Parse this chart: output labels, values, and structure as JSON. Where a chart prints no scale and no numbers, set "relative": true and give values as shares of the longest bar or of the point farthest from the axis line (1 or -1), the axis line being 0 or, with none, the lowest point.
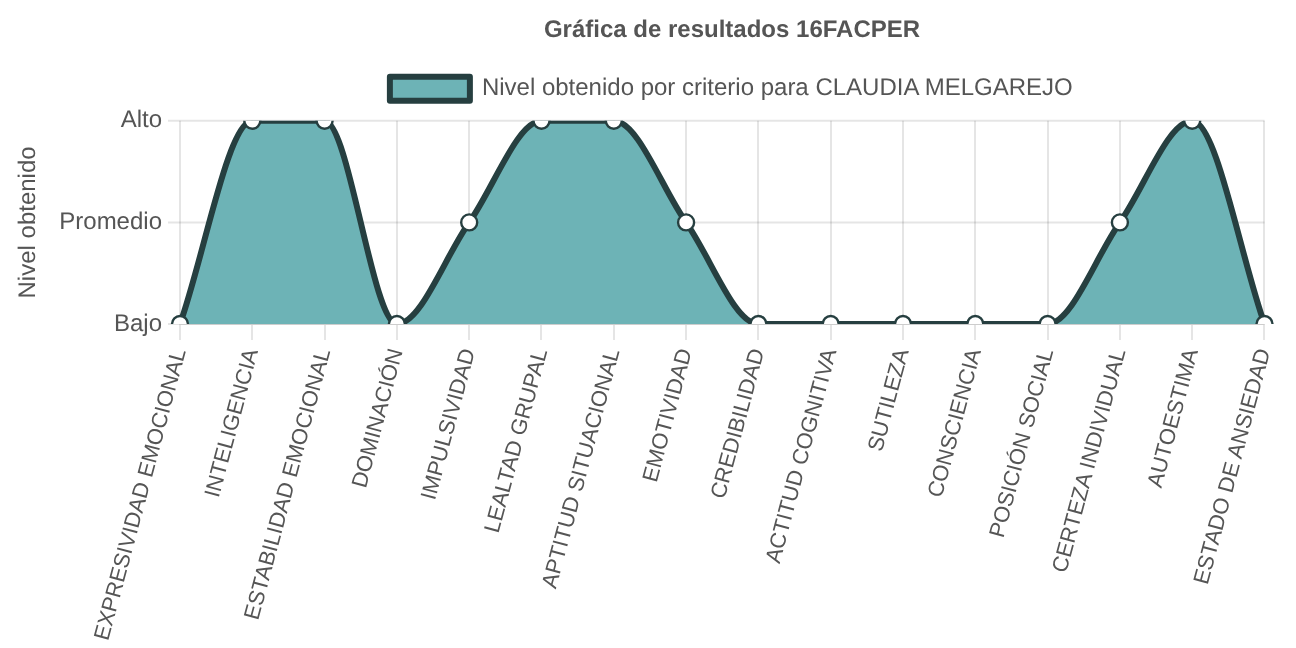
{
  "chart_data": {
    "type": "area",
    "title": "Gráfica de resultados 16FACPER",
    "ylabel": "Nivel obtenido",
    "categories": [
      "EXPRESIVIDAD EMOCIONAL",
      "INTELIGENCIA",
      "ESTABILIDAD EMOCIONAL",
      "DOMINACIÓN",
      "IMPULSIVIDAD",
      "LEALTAD GRUPAL",
      "APTITUD SITUACIONAL",
      "EMOTIVIDAD",
      "CREDIBILIDAD",
      "ACTITUD COGNITIVA",
      "SUTILEZA",
      "CONSCIENCIA",
      "POSICIÓN SOCIAL",
      "CERTEZA INDIVIDUAL",
      "AUTOESTIMA",
      "ESTADO DE ANSIEDAD"
    ],
    "series": [
      {
        "name": "Nivel obtenido por criterio para CLAUDIA MELGAREJO",
        "color": "#6db3b6",
        "values": [
          0,
          1,
          1,
          0,
          0.5,
          1,
          1,
          0.5,
          0,
          0,
          0,
          0,
          0,
          0.5,
          1,
          0
        ]
      }
    ],
    "relative": true,
    "annotations": [
      "Bajo",
      "Promedio",
      "Alto"
    ],
    "grid": true,
    "legend": "top",
    "marker": "circle"
  }
}
